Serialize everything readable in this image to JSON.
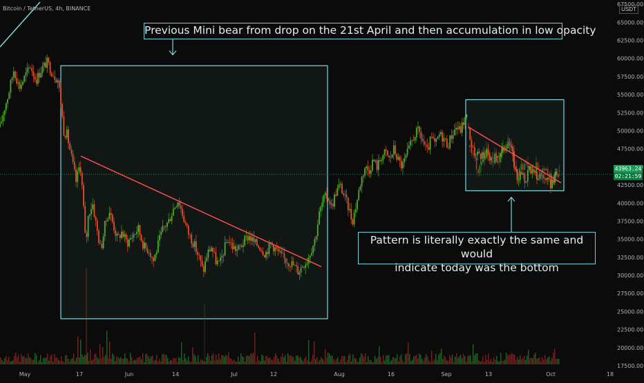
{
  "ticker": "Bitcoin / TetherUS, 4h, BINANCE",
  "unit": "USDT",
  "annotations": {
    "top": "Previous Mini bear from drop on the 21st April and then accumulation in low opacity",
    "bottom_line1": "Pattern is literally exactly the same and would",
    "bottom_line2": "indicate today was the bottom"
  },
  "price_tag": {
    "price": "43963.24",
    "timer": "02:21:59"
  },
  "colors": {
    "up": "#26a69a",
    "down": "#ef5350",
    "bull_candle": "#4caf2c",
    "bear_candle": "#e0522f",
    "trendline": "#ff4d4d",
    "box_border": "#7fd8e4",
    "current_price_line": "#1f8b4c",
    "axis_text": "#b2b5be",
    "background": "#0b0b0b"
  },
  "chart_data": {
    "type": "candlestick",
    "symbol": "Bitcoin / TetherUS",
    "interval": "4h",
    "exchange": "BINANCE",
    "y_ticks": [
      17500,
      20000,
      22500,
      25000,
      27500,
      30000,
      32500,
      35000,
      37500,
      40000,
      42500,
      45000,
      47500,
      50000,
      52500,
      55000,
      57500,
      60000,
      62500,
      65000,
      67500
    ],
    "ylim": [
      16500,
      67800
    ],
    "x_ticks": [
      "May",
      "17",
      "Jun",
      "14",
      "Jul",
      "12",
      "Aug",
      "16",
      "Sep",
      "13",
      "Oct",
      "18"
    ],
    "current_price": 43963.24,
    "countdown": "02:21:59",
    "price_path": [
      [
        0,
        50500
      ],
      [
        6,
        53000
      ],
      [
        12,
        55000
      ],
      [
        20,
        58500
      ],
      [
        28,
        56000
      ],
      [
        36,
        57500
      ],
      [
        44,
        59000
      ],
      [
        52,
        57000
      ],
      [
        60,
        58500
      ],
      [
        68,
        59500
      ],
      [
        76,
        58000
      ],
      [
        84,
        57000
      ],
      [
        88,
        54000
      ],
      [
        92,
        50000
      ],
      [
        97,
        49500
      ],
      [
        104,
        46000
      ],
      [
        110,
        43000
      ],
      [
        116,
        45500
      ],
      [
        120,
        41000
      ],
      [
        124,
        34000
      ],
      [
        128,
        38500
      ],
      [
        134,
        40000
      ],
      [
        140,
        36500
      ],
      [
        146,
        33500
      ],
      [
        152,
        37000
      ],
      [
        158,
        39000
      ],
      [
        164,
        37000
      ],
      [
        170,
        35000
      ],
      [
        176,
        36000
      ],
      [
        184,
        34500
      ],
      [
        192,
        35500
      ],
      [
        200,
        36500
      ],
      [
        208,
        34000
      ],
      [
        216,
        33500
      ],
      [
        222,
        32000
      ],
      [
        228,
        34000
      ],
      [
        236,
        36500
      ],
      [
        244,
        37500
      ],
      [
        252,
        39500
      ],
      [
        258,
        40500
      ],
      [
        264,
        38500
      ],
      [
        272,
        36000
      ],
      [
        280,
        34500
      ],
      [
        288,
        32500
      ],
      [
        294,
        30500
      ],
      [
        300,
        33000
      ],
      [
        306,
        34000
      ],
      [
        312,
        32000
      ],
      [
        318,
        31500
      ],
      [
        324,
        33500
      ],
      [
        330,
        35000
      ],
      [
        336,
        34000
      ],
      [
        344,
        33500
      ],
      [
        352,
        34500
      ],
      [
        360,
        35500
      ],
      [
        368,
        34500
      ],
      [
        376,
        34000
      ],
      [
        384,
        33000
      ],
      [
        392,
        34500
      ],
      [
        400,
        33500
      ],
      [
        408,
        32500
      ],
      [
        416,
        32000
      ],
      [
        424,
        31500
      ],
      [
        432,
        30500
      ],
      [
        438,
        31500
      ],
      [
        444,
        32000
      ],
      [
        450,
        33500
      ],
      [
        456,
        35000
      ],
      [
        462,
        38500
      ],
      [
        468,
        40500
      ],
      [
        474,
        41000
      ],
      [
        480,
        39500
      ],
      [
        486,
        41500
      ],
      [
        492,
        42500
      ],
      [
        498,
        41000
      ],
      [
        504,
        39500
      ],
      [
        510,
        37500
      ],
      [
        516,
        40000
      ],
      [
        522,
        43000
      ],
      [
        528,
        45000
      ],
      [
        534,
        44500
      ],
      [
        540,
        46000
      ],
      [
        546,
        45000
      ],
      [
        552,
        46500
      ],
      [
        558,
        47000
      ],
      [
        564,
        46000
      ],
      [
        570,
        47500
      ],
      [
        576,
        46000
      ],
      [
        582,
        45000
      ],
      [
        588,
        46500
      ],
      [
        594,
        48000
      ],
      [
        600,
        49500
      ],
      [
        606,
        50000
      ],
      [
        612,
        48500
      ],
      [
        618,
        47000
      ],
      [
        624,
        49000
      ],
      [
        630,
        48000
      ],
      [
        636,
        49500
      ],
      [
        642,
        49000
      ],
      [
        648,
        48000
      ],
      [
        654,
        49500
      ],
      [
        660,
        50500
      ],
      [
        666,
        50000
      ],
      [
        672,
        51500
      ],
      [
        676,
        52000
      ]
    ],
    "overlay_path": [
      [
        680,
        48000
      ],
      [
        686,
        46500
      ],
      [
        692,
        44500
      ],
      [
        698,
        46000
      ],
      [
        704,
        47500
      ],
      [
        710,
        45000
      ],
      [
        716,
        47000
      ],
      [
        722,
        45500
      ],
      [
        728,
        47500
      ],
      [
        734,
        48500
      ],
      [
        740,
        47000
      ],
      [
        746,
        44000
      ],
      [
        752,
        44500
      ],
      [
        758,
        45500
      ],
      [
        764,
        45000
      ],
      [
        770,
        44500
      ],
      [
        776,
        45000
      ],
      [
        782,
        44000
      ],
      [
        788,
        44500
      ],
      [
        794,
        43500
      ],
      [
        800,
        43000
      ],
      [
        806,
        44000
      ],
      [
        810,
        44500
      ]
    ],
    "real_after_path": [
      [
        676,
        52000
      ],
      [
        682,
        47500
      ],
      [
        688,
        46500
      ],
      [
        694,
        47000
      ],
      [
        700,
        46000
      ],
      [
        706,
        47000
      ],
      [
        712,
        45500
      ],
      [
        718,
        47000
      ],
      [
        724,
        46500
      ],
      [
        730,
        48000
      ],
      [
        736,
        48500
      ],
      [
        742,
        46500
      ],
      [
        748,
        43500
      ],
      [
        754,
        44000
      ],
      [
        760,
        43000
      ],
      [
        766,
        45000
      ],
      [
        772,
        44000
      ],
      [
        778,
        43500
      ],
      [
        784,
        44000
      ],
      [
        790,
        43000
      ],
      [
        796,
        42500
      ],
      [
        802,
        43500
      ],
      [
        808,
        44000
      ]
    ],
    "trendlines": [
      {
        "from": [
          117,
          46500
        ],
        "to": [
          465,
          31200
        ]
      },
      {
        "from": [
          678,
          50500
        ],
        "to": [
          812,
          42800
        ]
      }
    ],
    "boxes": [
      {
        "x1": 88,
        "y1": 59000,
        "x2": 474,
        "y2": 24000
      },
      {
        "x1": 674,
        "y1": 54300,
        "x2": 816,
        "y2": 41700
      }
    ],
    "arrows": [
      {
        "x": 250,
        "from_y": 62800,
        "to_y": 60500
      },
      {
        "x": 740,
        "from_y": 36000,
        "to_y": 40800
      }
    ]
  }
}
